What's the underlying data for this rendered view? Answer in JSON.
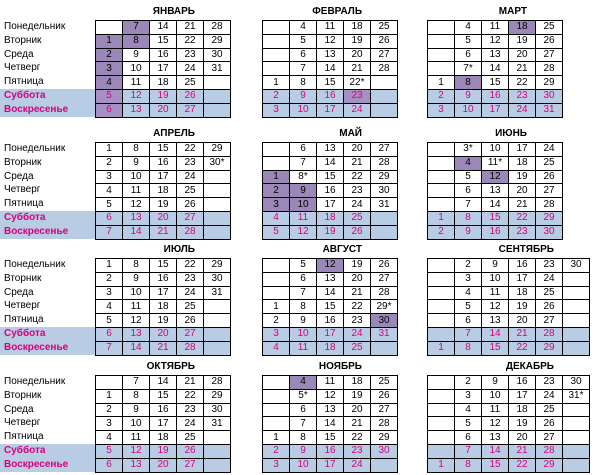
{
  "weekdays": [
    "Понедельник",
    "Вторник",
    "Среда",
    "Четверг",
    "Пятница",
    "Суббота",
    "Воскресенье"
  ],
  "months": [
    {
      "name": "ЯНВАРЬ",
      "rows": [
        [
          "",
          "7",
          "14",
          "21",
          "28"
        ],
        [
          "1",
          "8",
          "15",
          "22",
          "29"
        ],
        [
          "2",
          "9",
          "16",
          "23",
          "30"
        ],
        [
          "3",
          "10",
          "17",
          "24",
          "31"
        ],
        [
          "4",
          "11",
          "18",
          "25",
          ""
        ],
        [
          "5",
          "12",
          "19",
          "26",
          ""
        ],
        [
          "6",
          "13",
          "20",
          "27",
          ""
        ]
      ],
      "hol": [
        "1,0",
        "2,0",
        "3,0",
        "4,0",
        "5,0",
        "6,0",
        "0,1",
        "1,1"
      ]
    },
    {
      "name": "ФЕВРАЛЬ",
      "rows": [
        [
          "",
          "4",
          "11",
          "18",
          "25"
        ],
        [
          "",
          "5",
          "12",
          "19",
          "26"
        ],
        [
          "",
          "6",
          "13",
          "20",
          "27"
        ],
        [
          "",
          "7",
          "14",
          "21",
          "28"
        ],
        [
          "1",
          "8",
          "15",
          "22*",
          ""
        ],
        [
          "2",
          "9",
          "16",
          "23",
          ""
        ],
        [
          "3",
          "10",
          "17",
          "24",
          ""
        ]
      ],
      "hol": [
        "5,3"
      ]
    },
    {
      "name": "МАРТ",
      "rows": [
        [
          "",
          "4",
          "11",
          "18",
          "25"
        ],
        [
          "",
          "5",
          "12",
          "19",
          "26"
        ],
        [
          "",
          "6",
          "13",
          "20",
          "27"
        ],
        [
          "",
          "7*",
          "14",
          "21",
          "28"
        ],
        [
          "1",
          "8",
          "15",
          "22",
          "29"
        ],
        [
          "2",
          "9",
          "16",
          "23",
          "30"
        ],
        [
          "3",
          "10",
          "17",
          "24",
          "31"
        ]
      ],
      "hol": [
        "0,3",
        "4,1"
      ]
    },
    {
      "name": "АПРЕЛЬ",
      "rows": [
        [
          "1",
          "8",
          "15",
          "22",
          "29"
        ],
        [
          "2",
          "9",
          "16",
          "23",
          "30*"
        ],
        [
          "3",
          "10",
          "17",
          "24",
          ""
        ],
        [
          "4",
          "11",
          "18",
          "25",
          ""
        ],
        [
          "5",
          "12",
          "19",
          "26",
          ""
        ],
        [
          "6",
          "13",
          "20",
          "27",
          ""
        ],
        [
          "7",
          "14",
          "21",
          "28",
          ""
        ]
      ],
      "hol": []
    },
    {
      "name": "МАЙ",
      "rows": [
        [
          "",
          "6",
          "13",
          "20",
          "27"
        ],
        [
          "",
          "7",
          "14",
          "21",
          "28"
        ],
        [
          "1",
          "8*",
          "15",
          "22",
          "29"
        ],
        [
          "2",
          "9",
          "16",
          "23",
          "30"
        ],
        [
          "3",
          "10",
          "17",
          "24",
          "31"
        ],
        [
          "4",
          "11",
          "18",
          "25",
          ""
        ],
        [
          "5",
          "12",
          "19",
          "26",
          ""
        ]
      ],
      "hol": [
        "2,0",
        "3,0",
        "4,0",
        "3,1",
        "4,1"
      ]
    },
    {
      "name": "ИЮНЬ",
      "rows": [
        [
          "",
          "3*",
          "10",
          "17",
          "24"
        ],
        [
          "",
          "4",
          "11*",
          "18",
          "25"
        ],
        [
          "",
          "5",
          "12",
          "19",
          "26"
        ],
        [
          "",
          "6",
          "13",
          "20",
          "27"
        ],
        [
          "",
          "7",
          "14",
          "21",
          "28"
        ],
        [
          "1",
          "8",
          "15",
          "22",
          "29"
        ],
        [
          "2",
          "9",
          "16",
          "23",
          "30"
        ]
      ],
      "hol": [
        "1,1",
        "2,2"
      ]
    },
    {
      "name": "ИЮЛЬ",
      "rows": [
        [
          "1",
          "8",
          "15",
          "22",
          "29"
        ],
        [
          "2",
          "9",
          "16",
          "23",
          "30"
        ],
        [
          "3",
          "10",
          "17",
          "24",
          "31"
        ],
        [
          "4",
          "11",
          "18",
          "25",
          ""
        ],
        [
          "5",
          "12",
          "19",
          "26",
          ""
        ],
        [
          "6",
          "13",
          "20",
          "27",
          ""
        ],
        [
          "7",
          "14",
          "21",
          "28",
          ""
        ]
      ],
      "hol": []
    },
    {
      "name": "АВГУСТ",
      "rows": [
        [
          "",
          "5",
          "12",
          "19",
          "26"
        ],
        [
          "",
          "6",
          "13",
          "20",
          "27"
        ],
        [
          "",
          "7",
          "14",
          "21",
          "28"
        ],
        [
          "1",
          "8",
          "15",
          "22",
          "29*"
        ],
        [
          "2",
          "9",
          "16",
          "23",
          "30"
        ],
        [
          "3",
          "10",
          "17",
          "24",
          "31"
        ],
        [
          "4",
          "11",
          "18",
          "25",
          ""
        ]
      ],
      "hol": [
        "0,2",
        "4,4"
      ]
    },
    {
      "name": "СЕНТЯБРЬ",
      "rows": [
        [
          "",
          "2",
          "9",
          "16",
          "23",
          "30"
        ],
        [
          "",
          "3",
          "10",
          "17",
          "24",
          ""
        ],
        [
          "",
          "4",
          "11",
          "18",
          "25",
          ""
        ],
        [
          "",
          "5",
          "12",
          "19",
          "26",
          ""
        ],
        [
          "",
          "6",
          "13",
          "20",
          "27",
          ""
        ],
        [
          "",
          "7",
          "14",
          "21",
          "28",
          ""
        ],
        [
          "1",
          "8",
          "15",
          "22",
          "29",
          ""
        ]
      ],
      "hol": []
    },
    {
      "name": "ОКТЯБРЬ",
      "rows": [
        [
          "",
          "7",
          "14",
          "21",
          "28"
        ],
        [
          "1",
          "8",
          "15",
          "22",
          "29"
        ],
        [
          "2",
          "9",
          "16",
          "23",
          "30"
        ],
        [
          "3",
          "10",
          "17",
          "24",
          "31"
        ],
        [
          "4",
          "11",
          "18",
          "25",
          ""
        ],
        [
          "5",
          "12",
          "19",
          "26",
          ""
        ],
        [
          "6",
          "13",
          "20",
          "27",
          ""
        ]
      ],
      "hol": []
    },
    {
      "name": "НОЯБРЬ",
      "rows": [
        [
          "",
          "4",
          "11",
          "18",
          "25"
        ],
        [
          "",
          "5*",
          "12",
          "19",
          "26"
        ],
        [
          "",
          "6",
          "13",
          "20",
          "27"
        ],
        [
          "",
          "7",
          "14",
          "21",
          "28"
        ],
        [
          "1",
          "8",
          "15",
          "22",
          "29"
        ],
        [
          "2",
          "9",
          "16",
          "23",
          "30"
        ],
        [
          "3",
          "10",
          "17",
          "24",
          ""
        ]
      ],
      "hol": [
        "0,1"
      ]
    },
    {
      "name": "ДЕКАБРЬ",
      "rows": [
        [
          "",
          "2",
          "9",
          "16",
          "23",
          "30"
        ],
        [
          "",
          "3",
          "10",
          "17",
          "24",
          "31*"
        ],
        [
          "",
          "4",
          "11",
          "18",
          "25",
          ""
        ],
        [
          "",
          "5",
          "12",
          "19",
          "26",
          ""
        ],
        [
          "",
          "6",
          "13",
          "20",
          "27",
          ""
        ],
        [
          "",
          "7",
          "14",
          "21",
          "28",
          ""
        ],
        [
          "1",
          "8",
          "15",
          "22",
          "29",
          ""
        ]
      ],
      "hol": []
    }
  ]
}
